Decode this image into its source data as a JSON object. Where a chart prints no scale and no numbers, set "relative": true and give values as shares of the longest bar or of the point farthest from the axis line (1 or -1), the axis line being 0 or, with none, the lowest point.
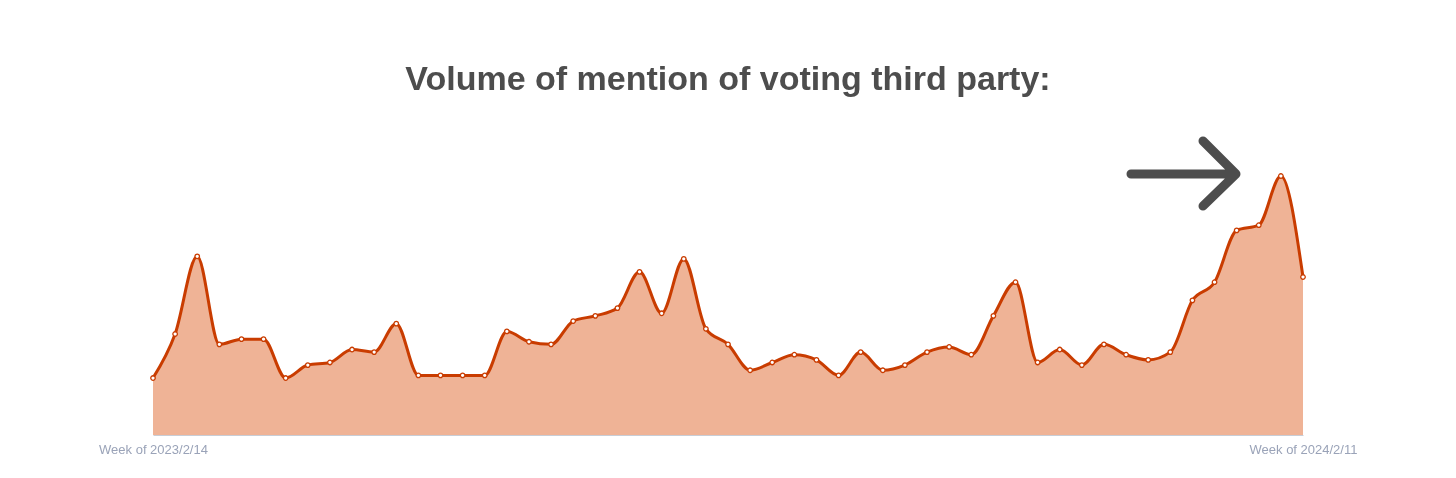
{
  "chart_data": {
    "type": "area",
    "title": "Volume of mention of voting third party:",
    "relative": true,
    "marker": "circle",
    "categories": [
      "Week of 2023/2/14",
      null,
      null,
      null,
      null,
      null,
      null,
      null,
      null,
      null,
      null,
      null,
      null,
      null,
      null,
      null,
      null,
      null,
      null,
      null,
      null,
      null,
      null,
      null,
      null,
      null,
      null,
      null,
      null,
      null,
      null,
      null,
      null,
      null,
      null,
      null,
      null,
      null,
      null,
      null,
      null,
      null,
      null,
      null,
      null,
      null,
      null,
      null,
      null,
      null,
      null,
      null,
      "Week of 2024/2/11"
    ],
    "series": [
      {
        "color": "#c93c00",
        "values": [
          0.22,
          0.39,
          0.69,
          0.35,
          0.37,
          0.37,
          0.22,
          0.27,
          0.28,
          0.33,
          0.32,
          0.43,
          0.23,
          0.23,
          0.23,
          0.23,
          0.4,
          0.36,
          0.35,
          0.44,
          0.46,
          0.49,
          0.63,
          0.47,
          0.68,
          0.41,
          0.35,
          0.25,
          0.28,
          0.31,
          0.29,
          0.23,
          0.32,
          0.25,
          0.27,
          0.32,
          0.34,
          0.31,
          0.46,
          0.59,
          0.28,
          0.33,
          0.27,
          0.35,
          0.31,
          0.29,
          0.32,
          0.52,
          0.59,
          0.79,
          0.81,
          1,
          0.61
        ]
      }
    ]
  }
}
